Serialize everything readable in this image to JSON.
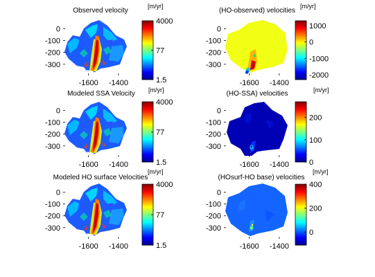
{
  "chart_data": [
    {
      "type": "heatmap",
      "title": "Observed velocity",
      "x_ticks": [
        "-1600",
        "-1400"
      ],
      "y_ticks": [
        "0",
        "-100",
        "-200",
        "-300"
      ],
      "colorbar": {
        "unit": "[m/yr]",
        "scale": "log",
        "range": [
          1.5,
          4000
        ],
        "ticks": [
          "4000",
          "77",
          "1.5"
        ]
      },
      "colors": {
        "background": "#1c5cff",
        "high": "#aa0000",
        "mid": "#00ffff",
        "low": "#0000bb"
      }
    },
    {
      "type": "heatmap",
      "title": "(HO-observed) velocities",
      "x_ticks": [
        "-1600",
        "-1400"
      ],
      "y_ticks": [
        "0",
        "-100",
        "-200",
        "-300"
      ],
      "colorbar": {
        "unit": "[m/yr]",
        "scale": "linear",
        "range": [
          -2300,
          1300
        ],
        "ticks": [
          "1000",
          "0",
          "-1000",
          "-2000"
        ]
      },
      "colors": {
        "background": "#f0ff14"
      }
    },
    {
      "type": "heatmap",
      "title": "Modeled SSA Velocity",
      "x_ticks": [
        "-1600",
        "-1400"
      ],
      "y_ticks": [
        "0",
        "-100",
        "-200",
        "-300"
      ],
      "colorbar": {
        "unit": "[m/yr]",
        "scale": "log",
        "range": [
          1.5,
          4000
        ],
        "ticks": [
          "4000",
          "77",
          "1.5"
        ]
      },
      "colors": {
        "background": "#1c5cff"
      }
    },
    {
      "type": "heatmap",
      "title": "(HO-SSA) velocities",
      "x_ticks": [
        "-1600",
        "-1400"
      ],
      "y_ticks": [
        "0",
        "-100",
        "-200",
        "-300"
      ],
      "colorbar": {
        "unit": "[m/yr]",
        "scale": "linear",
        "range": [
          0,
          270
        ],
        "ticks": [
          "200",
          "100",
          "0"
        ]
      },
      "colors": {
        "background": "#0000b4"
      }
    },
    {
      "type": "heatmap",
      "title": "Modeled HO surface Velocities",
      "x_ticks": [
        "-1600",
        "-1400"
      ],
      "y_ticks": [
        "0",
        "-100",
        "-200",
        "-300"
      ],
      "colorbar": {
        "unit": "[m/yr]",
        "scale": "log",
        "range": [
          1.5,
          4000
        ],
        "ticks": [
          "4000",
          "77",
          "1.5"
        ]
      },
      "colors": {
        "background": "#1c5cff"
      }
    },
    {
      "type": "heatmap",
      "title": "(HOsurf-HO base) velocities",
      "x_ticks": [
        "-1600",
        "-1400"
      ],
      "y_ticks": [
        "0",
        "-100",
        "-200",
        "-300"
      ],
      "colorbar": {
        "unit": "[m/yr]",
        "scale": "linear",
        "range": [
          -110,
          400
        ],
        "ticks": [
          "400",
          "200",
          "0"
        ]
      },
      "colors": {
        "background": "#1464ff"
      }
    }
  ]
}
